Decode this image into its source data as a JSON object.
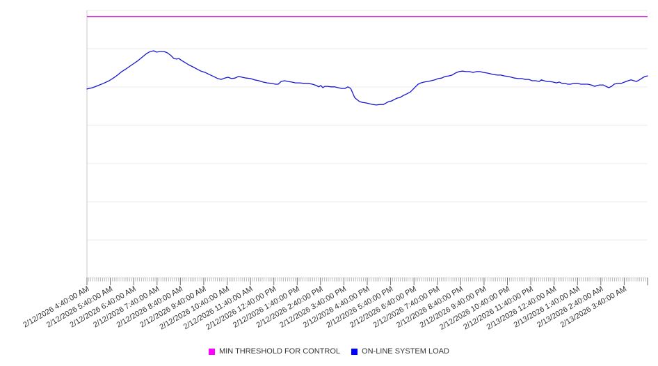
{
  "page": {
    "background": "#ffffff",
    "title": ""
  },
  "colors": {
    "gridline": "#ebebeb",
    "axis_line": "#c8c8c8",
    "bottom_line": "#e3e3e3",
    "minor_tick": "#8f8f8f",
    "major_tick": "#6e6e6e",
    "label_text": "#333333",
    "threshold_magenta": "#ff00ff",
    "load_blue": "#0000ff"
  },
  "chart_data": {
    "type": "line",
    "title": "",
    "xlabel": "",
    "ylabel": "",
    "legend_position": "bottom-center",
    "grid": "horizontal",
    "x_axis": {
      "range_hours": [
        0,
        24
      ],
      "major_tick_every_minutes": 60,
      "minor_tick_every_minutes": 5,
      "tick_labels": [
        "2/12/2026 4:40:00 AM",
        "2/12/2026 5:40:00 AM",
        "2/12/2026 6:40:00 AM",
        "2/12/2026 7:40:00 AM",
        "2/12/2026 8:40:00 AM",
        "2/12/2026 9:40:00 AM",
        "2/12/2026 10:40:00 AM",
        "2/12/2026 11:40:00 AM",
        "2/12/2026 12:40:00 PM",
        "2/12/2026 1:40:00 PM",
        "2/12/2026 2:40:00 PM",
        "2/12/2026 3:40:00 PM",
        "2/12/2026 4:40:00 PM",
        "2/12/2026 5:40:00 PM",
        "2/12/2026 6:40:00 PM",
        "2/12/2026 7:40:00 PM",
        "2/12/2026 8:40:00 PM",
        "2/12/2026 9:40:00 PM",
        "2/12/2026 10:40:00 PM",
        "2/12/2026 11:40:00 PM",
        "2/13/2026 12:40:00 AM",
        "2/13/2026 1:40:00 AM",
        "2/13/2026 2:40:00 AM",
        "2/13/2026 3:40:00 AM"
      ],
      "label_rotation_deg": -30
    },
    "y_axis": {
      "tick_labels_visible": false,
      "scale": "percent_of_plot_height",
      "range": [
        0,
        100
      ],
      "gridline_count": 7
    },
    "series": [
      {
        "name": "MIN THRESHOLD FOR CONTROL",
        "type": "constant",
        "value": 97.7,
        "color": "#ff00ff",
        "line_color": "#d926d9"
      },
      {
        "name": "ON-LINE SYSTEM LOAD",
        "type": "line",
        "color": "#0000ff",
        "line_color": "#1515d0",
        "points": [
          [
            0,
            70.6
          ],
          [
            0.24,
            71.1
          ],
          [
            0.48,
            71.9
          ],
          [
            0.71,
            72.7
          ],
          [
            0.95,
            73.7
          ],
          [
            1.13,
            74.7
          ],
          [
            1.31,
            75.8
          ],
          [
            1.49,
            77.1
          ],
          [
            1.67,
            78.1
          ],
          [
            1.85,
            79.2
          ],
          [
            2.02,
            80.2
          ],
          [
            2.2,
            81.3
          ],
          [
            2.38,
            82.6
          ],
          [
            2.56,
            83.9
          ],
          [
            2.71,
            84.6
          ],
          [
            2.86,
            84.9
          ],
          [
            2.98,
            84.4
          ],
          [
            3.13,
            84.6
          ],
          [
            3.31,
            84.6
          ],
          [
            3.45,
            84.1
          ],
          [
            3.6,
            83.1
          ],
          [
            3.72,
            82
          ],
          [
            3.84,
            81.8
          ],
          [
            3.93,
            82
          ],
          [
            4.05,
            81.3
          ],
          [
            4.2,
            80.5
          ],
          [
            4.35,
            79.7
          ],
          [
            4.53,
            78.9
          ],
          [
            4.7,
            78.1
          ],
          [
            4.88,
            77.3
          ],
          [
            5.06,
            76.8
          ],
          [
            5.24,
            76
          ],
          [
            5.42,
            75.3
          ],
          [
            5.6,
            74.5
          ],
          [
            5.75,
            74.2
          ],
          [
            5.9,
            74.7
          ],
          [
            6.04,
            75
          ],
          [
            6.19,
            74.5
          ],
          [
            6.34,
            74.7
          ],
          [
            6.49,
            75.3
          ],
          [
            6.64,
            75
          ],
          [
            6.82,
            74.7
          ],
          [
            7,
            74.5
          ],
          [
            7.18,
            74
          ],
          [
            7.36,
            73.7
          ],
          [
            7.53,
            73.2
          ],
          [
            7.71,
            72.9
          ],
          [
            7.89,
            72.7
          ],
          [
            8.07,
            72.4
          ],
          [
            8.19,
            72.4
          ],
          [
            8.31,
            73.4
          ],
          [
            8.46,
            73.7
          ],
          [
            8.61,
            73.4
          ],
          [
            8.76,
            73.2
          ],
          [
            8.93,
            72.9
          ],
          [
            9.11,
            72.9
          ],
          [
            9.29,
            72.7
          ],
          [
            9.47,
            72.7
          ],
          [
            9.65,
            72.4
          ],
          [
            9.83,
            71.9
          ],
          [
            9.92,
            71.4
          ],
          [
            10.01,
            71.9
          ],
          [
            10.1,
            71.1
          ],
          [
            10.18,
            71.6
          ],
          [
            10.3,
            71.6
          ],
          [
            10.45,
            71.4
          ],
          [
            10.6,
            71.4
          ],
          [
            10.75,
            71.1
          ],
          [
            10.9,
            70.8
          ],
          [
            11.05,
            70.8
          ],
          [
            11.17,
            71.4
          ],
          [
            11.29,
            70.8
          ],
          [
            11.38,
            69
          ],
          [
            11.46,
            67.4
          ],
          [
            11.55,
            66.7
          ],
          [
            11.67,
            65.9
          ],
          [
            11.79,
            65.6
          ],
          [
            11.94,
            65.4
          ],
          [
            12.09,
            65.1
          ],
          [
            12.24,
            64.8
          ],
          [
            12.39,
            64.6
          ],
          [
            12.54,
            64.8
          ],
          [
            12.69,
            64.8
          ],
          [
            12.81,
            65.4
          ],
          [
            12.92,
            65.9
          ],
          [
            13.04,
            66.1
          ],
          [
            13.16,
            66.7
          ],
          [
            13.28,
            67.2
          ],
          [
            13.4,
            67.4
          ],
          [
            13.55,
            68.2
          ],
          [
            13.7,
            68.8
          ],
          [
            13.85,
            69.5
          ],
          [
            13.97,
            70.6
          ],
          [
            14.06,
            71.4
          ],
          [
            14.18,
            72.4
          ],
          [
            14.3,
            72.9
          ],
          [
            14.44,
            73.2
          ],
          [
            14.59,
            73.4
          ],
          [
            14.74,
            73.7
          ],
          [
            14.89,
            74
          ],
          [
            15.04,
            74.5
          ],
          [
            15.19,
            74.7
          ],
          [
            15.34,
            75.3
          ],
          [
            15.49,
            75.5
          ],
          [
            15.63,
            75.8
          ],
          [
            15.78,
            76.6
          ],
          [
            15.93,
            77.1
          ],
          [
            16.08,
            77.3
          ],
          [
            16.23,
            77.1
          ],
          [
            16.38,
            77.1
          ],
          [
            16.53,
            76.8
          ],
          [
            16.68,
            77.1
          ],
          [
            16.83,
            77.1
          ],
          [
            16.97,
            76.8
          ],
          [
            17.12,
            76.6
          ],
          [
            17.27,
            76.3
          ],
          [
            17.42,
            76
          ],
          [
            17.57,
            75.8
          ],
          [
            17.72,
            75.8
          ],
          [
            17.87,
            75.5
          ],
          [
            18.02,
            75.3
          ],
          [
            18.17,
            75
          ],
          [
            18.31,
            74.7
          ],
          [
            18.46,
            74.5
          ],
          [
            18.61,
            74.5
          ],
          [
            18.76,
            74.2
          ],
          [
            18.91,
            74.2
          ],
          [
            19.06,
            73.7
          ],
          [
            19.21,
            73.7
          ],
          [
            19.36,
            73.4
          ],
          [
            19.45,
            74
          ],
          [
            19.57,
            73.7
          ],
          [
            19.69,
            73.4
          ],
          [
            19.8,
            73.4
          ],
          [
            19.95,
            73.2
          ],
          [
            20.1,
            72.9
          ],
          [
            20.22,
            73.2
          ],
          [
            20.34,
            72.7
          ],
          [
            20.46,
            72.7
          ],
          [
            20.58,
            72.4
          ],
          [
            20.7,
            72.4
          ],
          [
            20.85,
            72.7
          ],
          [
            21,
            72.7
          ],
          [
            21.14,
            72.4
          ],
          [
            21.29,
            72.4
          ],
          [
            21.44,
            72.4
          ],
          [
            21.59,
            72.1
          ],
          [
            21.74,
            71.6
          ],
          [
            21.83,
            71.9
          ],
          [
            21.95,
            72.1
          ],
          [
            22.1,
            72.1
          ],
          [
            22.22,
            71.6
          ],
          [
            22.34,
            71.1
          ],
          [
            22.46,
            71.6
          ],
          [
            22.57,
            72.4
          ],
          [
            22.72,
            72.7
          ],
          [
            22.87,
            72.7
          ],
          [
            23.02,
            73.2
          ],
          [
            23.17,
            73.7
          ],
          [
            23.29,
            74
          ],
          [
            23.41,
            73.7
          ],
          [
            23.53,
            73.4
          ],
          [
            23.65,
            74
          ],
          [
            23.77,
            74.7
          ],
          [
            23.89,
            75.3
          ],
          [
            24,
            75.5
          ]
        ]
      }
    ]
  },
  "legend": {
    "items": [
      {
        "label": "MIN THRESHOLD FOR CONTROL",
        "color": "#ff00ff"
      },
      {
        "label": "ON-LINE SYSTEM LOAD",
        "color": "#0000ff"
      }
    ]
  }
}
